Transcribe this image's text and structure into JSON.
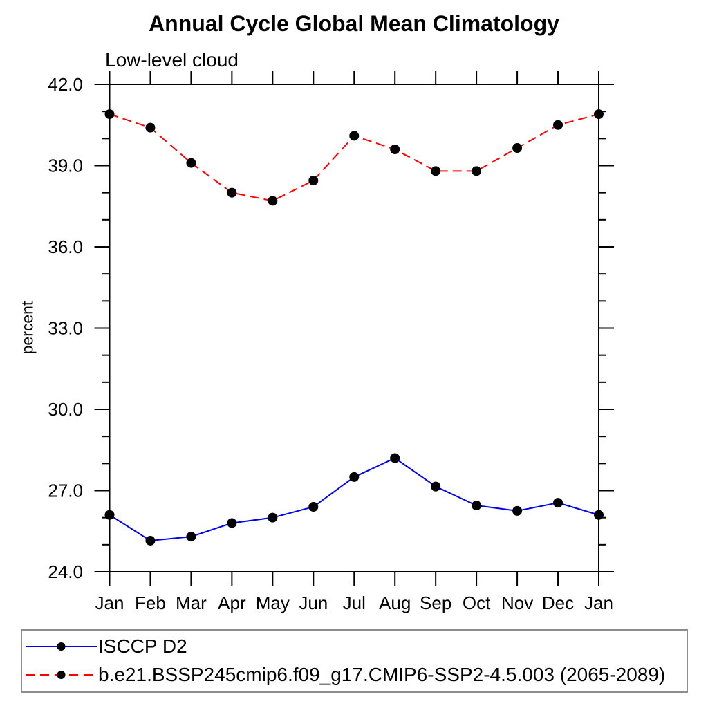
{
  "chart_data": {
    "type": "line",
    "title": "Annual Cycle Global Mean Climatology",
    "subtitle": "Low-level cloud",
    "ylabel": "percent",
    "categories": [
      "Jan",
      "Feb",
      "Mar",
      "Apr",
      "May",
      "Jun",
      "Jul",
      "Aug",
      "Sep",
      "Oct",
      "Nov",
      "Dec",
      "Jan"
    ],
    "ylim": [
      24.0,
      42.0
    ],
    "yticks": {
      "major_values": [
        24,
        27,
        30,
        33,
        36,
        39,
        42
      ],
      "major_labels": [
        "24.0",
        "27.0",
        "30.0",
        "33.0",
        "36.0",
        "39.0",
        "42.0"
      ],
      "minor_step": 1
    },
    "grid": false,
    "legend_position": "bottom",
    "axis_color": "#000000",
    "legend_border_color": "#8d8d8d",
    "marker": {
      "shape": "circle",
      "color": "#000000"
    },
    "series": [
      {
        "name": "ISCCP D2",
        "color": "#0000eb",
        "style": "solid",
        "values": [
          26.1,
          25.15,
          25.3,
          25.8,
          26.0,
          26.4,
          27.5,
          28.2,
          27.15,
          26.45,
          26.25,
          26.55,
          26.1
        ]
      },
      {
        "name": "b.e21.BSSP245cmip6.f09_g17.CMIP6-SSP2-4.5.003 (2065-2089)",
        "color": "#ff0000",
        "style": "dashed",
        "values": [
          40.9,
          40.4,
          39.1,
          38.0,
          37.7,
          38.45,
          40.1,
          39.6,
          38.8,
          38.8,
          39.65,
          40.5,
          40.9
        ]
      }
    ]
  }
}
